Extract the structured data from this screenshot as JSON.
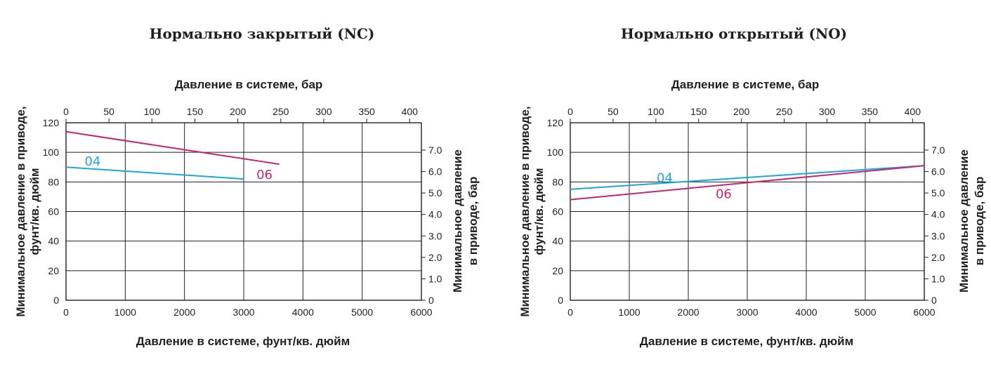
{
  "colors": {
    "series_04": "#1ba6df",
    "series_06": "#c8246f",
    "ink": "#231f20"
  },
  "chart_data": [
    {
      "type": "line",
      "title": "Нормально закрытый (NC)",
      "top_axis_label": "Давление в системе, бар",
      "xlabel": "Давление в системе, фунт/кв. дюйм",
      "ylabel_left": [
        "Минимальное давление в приводе,",
        "фунт/кв. дюйм"
      ],
      "ylabel_right": [
        "Минимальное давление",
        "в приводе, бар"
      ],
      "xlim": [
        0,
        6000
      ],
      "ylim": [
        0,
        120
      ],
      "x_ticks": [
        0,
        1000,
        2000,
        3000,
        4000,
        5000,
        6000
      ],
      "y_ticks": [
        0,
        20,
        40,
        60,
        80,
        100,
        120
      ],
      "top_ticks": [
        "0",
        "50",
        "100",
        "150",
        "200",
        "250",
        "300",
        "350",
        "400"
      ],
      "top_tick_bar": [
        0,
        50,
        100,
        150,
        200,
        250,
        300,
        350,
        400
      ],
      "right_ticks": [
        "0",
        "1.0",
        "2.0",
        "3.0",
        "4.0",
        "5.0",
        "6.0",
        "7.0"
      ],
      "right_tick_bar": [
        0,
        1,
        2,
        3,
        4,
        5,
        6,
        7
      ],
      "grid": true,
      "series": [
        {
          "name": "04",
          "color": "#1ba6df",
          "x": [
            0,
            3000
          ],
          "y": [
            90,
            82
          ],
          "label_at": [
            450,
            91
          ]
        },
        {
          "name": "06",
          "color": "#c8246f",
          "x": [
            0,
            3600
          ],
          "y": [
            114,
            92
          ],
          "label_at": [
            3350,
            82
          ]
        }
      ]
    },
    {
      "type": "line",
      "title": "Нормально открытый (NO)",
      "top_axis_label": "Давление в системе, бар",
      "xlabel": "Давление в системе, фунт/кв. дюйм",
      "ylabel_left": [
        "Минимальное давление в приводе,",
        "фунт/кв. дюйм"
      ],
      "ylabel_right": [
        "Минимальное давление",
        "в приводе, бар"
      ],
      "xlim": [
        0,
        6000
      ],
      "ylim": [
        0,
        120
      ],
      "x_ticks": [
        0,
        1000,
        2000,
        3000,
        4000,
        5000,
        6000
      ],
      "y_ticks": [
        0,
        20,
        40,
        60,
        80,
        100,
        120
      ],
      "top_ticks": [
        "0",
        "50",
        "100",
        "150",
        "200",
        "250",
        "300",
        "350",
        "400"
      ],
      "top_tick_bar": [
        0,
        50,
        100,
        150,
        200,
        250,
        300,
        350,
        400
      ],
      "right_ticks": [
        "0",
        "1.0",
        "2.0",
        "3.0",
        "4.0",
        "5.0",
        "6.0",
        "7.0"
      ],
      "right_tick_bar": [
        0,
        1,
        2,
        3,
        4,
        5,
        6,
        7
      ],
      "grid": true,
      "series": [
        {
          "name": "04",
          "color": "#1ba6df",
          "x": [
            0,
            6000
          ],
          "y": [
            75,
            91
          ],
          "label_at": [
            1600,
            80
          ]
        },
        {
          "name": "06",
          "color": "#c8246f",
          "x": [
            0,
            6000
          ],
          "y": [
            68,
            91
          ],
          "label_at": [
            2600,
            69
          ]
        }
      ]
    }
  ]
}
